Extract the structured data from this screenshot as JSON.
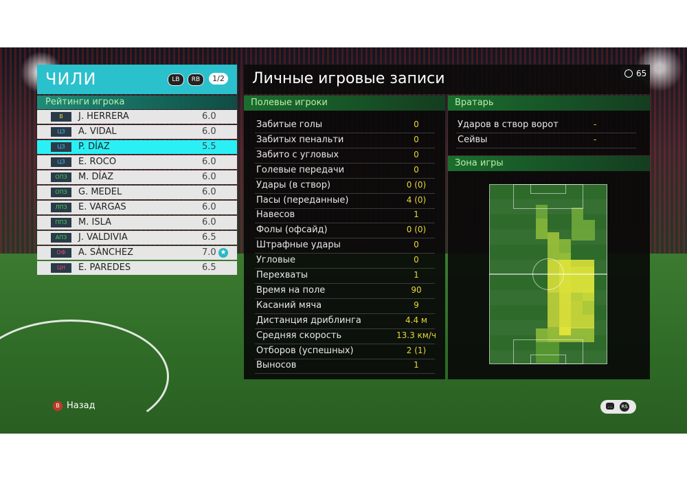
{
  "team": {
    "name": "ЧИЛИ",
    "btn_lb": "LB",
    "btn_rb": "RB",
    "page": "1/2"
  },
  "ratings_title": "Рейтинги игрока",
  "players": [
    {
      "pos": "В",
      "pos_color": "#e8d040",
      "name": "J. HERRERA",
      "rating": "6.0"
    },
    {
      "pos": "ЦЗ",
      "pos_color": "#4ab8e8",
      "name": "A. VIDAL",
      "rating": "6.0"
    },
    {
      "pos": "ЦЗ",
      "pos_color": "#4ab8e8",
      "name": "P. DÍAZ",
      "rating": "5.5",
      "selected": true
    },
    {
      "pos": "ЦЗ",
      "pos_color": "#4ab8e8",
      "name": "E. ROCO",
      "rating": "6.0"
    },
    {
      "pos": "ОПЗ",
      "pos_color": "#4ad060",
      "name": "M. DÍAZ",
      "rating": "6.0"
    },
    {
      "pos": "ОПЗ",
      "pos_color": "#4ad060",
      "name": "G. MEDEL",
      "rating": "6.0"
    },
    {
      "pos": "ЛПЗ",
      "pos_color": "#4ad060",
      "name": "E. VARGAS",
      "rating": "6.0"
    },
    {
      "pos": "ППЗ",
      "pos_color": "#4ad060",
      "name": "M. ISLA",
      "rating": "6.0"
    },
    {
      "pos": "АПЗ",
      "pos_color": "#4ad060",
      "name": "J. VALDIVIA",
      "rating": "6.5"
    },
    {
      "pos": "ОФ",
      "pos_color": "#e84a6a",
      "name": "A. SÁNCHEZ",
      "rating": "7.0",
      "star": true
    },
    {
      "pos": "ЦН",
      "pos_color": "#e84a6a",
      "name": "E. PAREDES",
      "rating": "6.5"
    }
  ],
  "main_title": "Личные игровые записи",
  "timer": "65",
  "field_players": {
    "title": "Полевые игроки",
    "stats": [
      {
        "label": "Забитые голы",
        "value": "0"
      },
      {
        "label": "Забитых пенальти",
        "value": "0"
      },
      {
        "label": "Забито с угловых",
        "value": "0"
      },
      {
        "label": "Голевые передачи",
        "value": "0"
      },
      {
        "label": "Удары (в створ)",
        "value": "0 (0)"
      },
      {
        "label": "Пасы (переданные)",
        "value": "4 (0)"
      },
      {
        "label": "Навесов",
        "value": "1"
      },
      {
        "label": "Фолы (офсайд)",
        "value": "0 (0)"
      },
      {
        "label": "Штрафные удары",
        "value": "0"
      },
      {
        "label": "Угловые",
        "value": "0"
      },
      {
        "label": "Перехваты",
        "value": "1"
      },
      {
        "label": "Время на поле",
        "value": "90"
      },
      {
        "label": "Касаний мяча",
        "value": "9"
      },
      {
        "label": "Дистанция дриблинга",
        "value": "4.4 м"
      },
      {
        "label": "Средняя скорость",
        "value": "13.3 км/ч"
      },
      {
        "label": "Отборов (успешных)",
        "value": "2 (1)"
      },
      {
        "label": "Выносов",
        "value": "1"
      }
    ]
  },
  "goalkeeper": {
    "title": "Вратарь",
    "stats": [
      {
        "label": "Ударов в створ ворот",
        "value": "-"
      },
      {
        "label": "Сейвы",
        "value": "-"
      }
    ]
  },
  "zone": {
    "title": "Зона игры"
  },
  "footer": {
    "back_button_glyph": "B",
    "back_label": "Назад",
    "chat_icon": "chat-icon",
    "rs_glyph": "RS"
  }
}
